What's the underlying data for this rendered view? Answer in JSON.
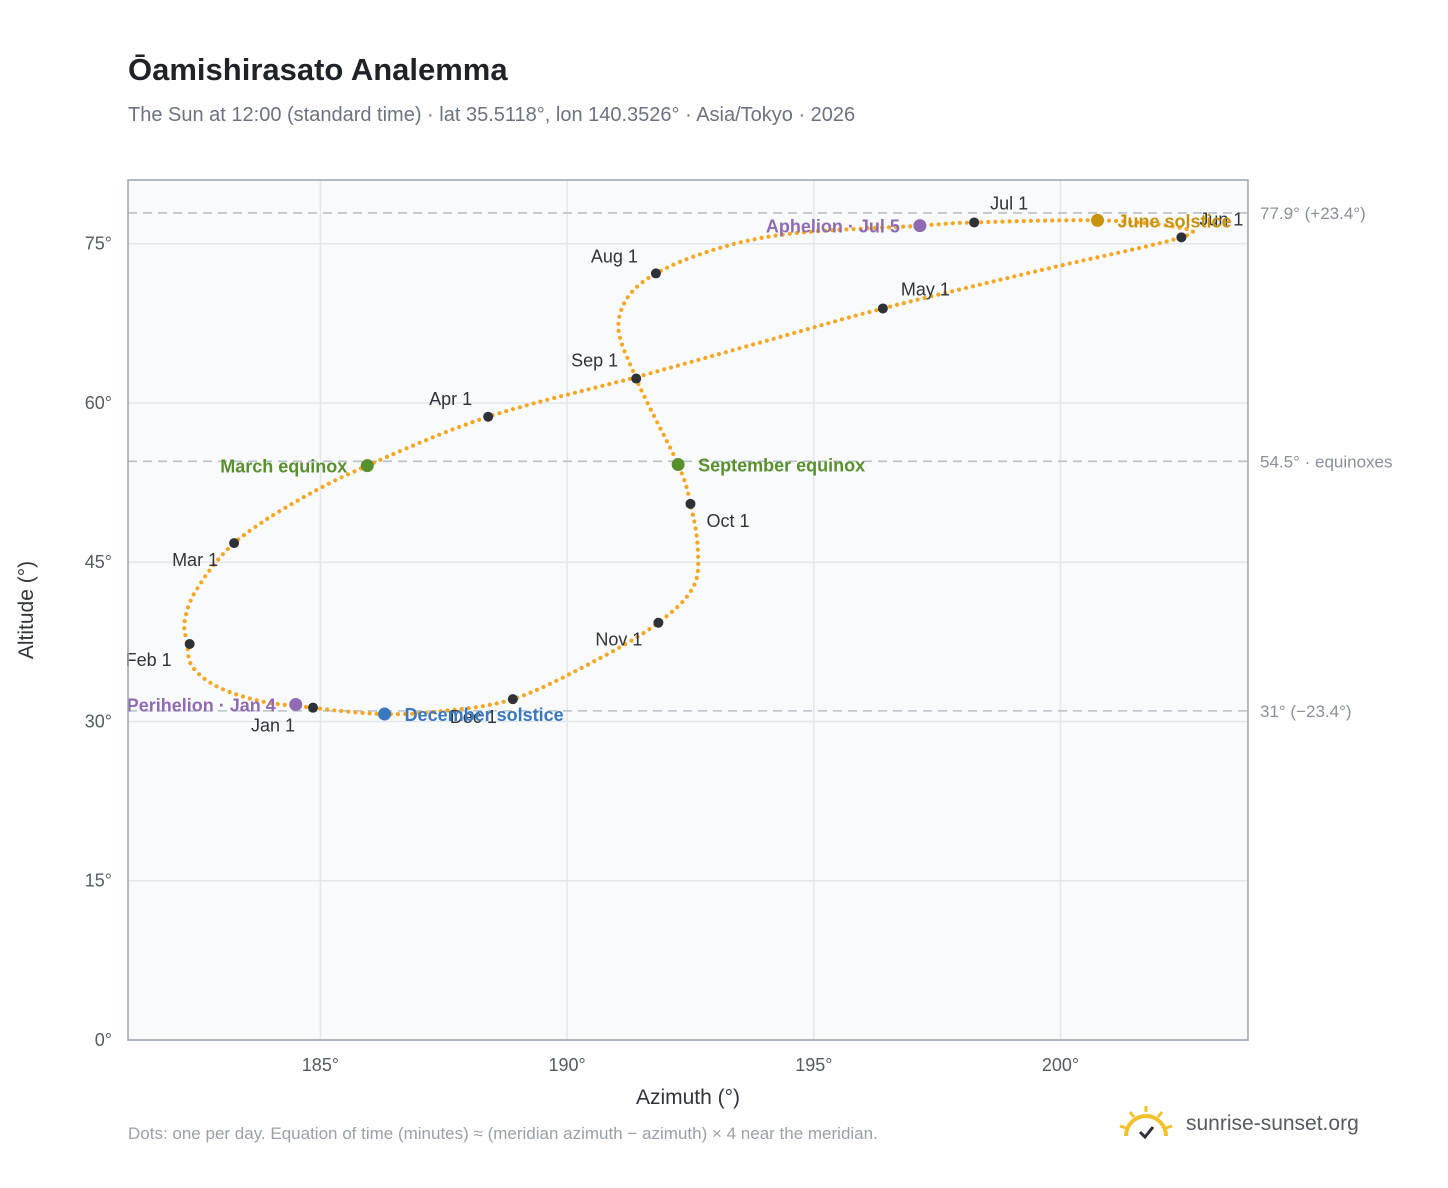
{
  "title": "Ōamishirasato Analemma",
  "subtitle": "The Sun at 12:00 (standard time) · lat 35.5118°, lon 140.3526° · Asia/Tokyo · 2026",
  "footnote": "Dots: one per day. Equation of time (minutes) ≈ (meridian azimuth − azimuth) × 4 near the meridian.",
  "brand": {
    "name": "sunrise-sunset.org",
    "logo_icon": "sun-check-icon",
    "logo_color": "#f2c12e"
  },
  "colors": {
    "path": "#f5a623",
    "month_point": "#2d3138",
    "equinox": "#5a8f2e",
    "june_solstice": "#c9920e",
    "december_solstice": "#3a78bf",
    "apsis": "#8e6bb3",
    "grid": "#e3e7ec",
    "ref_line": "#b9c0ca",
    "plot_bg": "#f8fafc",
    "frame": "#9aa3ae"
  },
  "chart_data": {
    "type": "scatter",
    "title": "Ōamishirasato Analemma",
    "xlabel": "Azimuth (°)",
    "ylabel": "Altitude (°)",
    "xlim": [
      181.1,
      203.8
    ],
    "ylim": [
      0,
      81
    ],
    "x_ticks": [
      {
        "value": 185,
        "label": "185°"
      },
      {
        "value": 190,
        "label": "190°"
      },
      {
        "value": 195,
        "label": "195°"
      },
      {
        "value": 200,
        "label": "200°"
      }
    ],
    "y_ticks": [
      {
        "value": 0,
        "label": "0°"
      },
      {
        "value": 15,
        "label": "15°"
      },
      {
        "value": 30,
        "label": "30°"
      },
      {
        "value": 45,
        "label": "45°"
      },
      {
        "value": 60,
        "label": "60°"
      },
      {
        "value": 75,
        "label": "75°"
      }
    ],
    "grid": true,
    "reference_lines": [
      {
        "y": 77.9,
        "label": "77.9° (+23.4°)"
      },
      {
        "y": 54.5,
        "label": "54.5° · equinoxes"
      },
      {
        "y": 31.0,
        "label": "31° (−23.4°)"
      }
    ],
    "path_keypoints": [
      {
        "x": 184.85,
        "y": 31.3
      },
      {
        "x": 183.8,
        "y": 31.9
      },
      {
        "x": 182.9,
        "y": 33.3
      },
      {
        "x": 182.4,
        "y": 35.2
      },
      {
        "x": 182.3,
        "y": 37.3
      },
      {
        "x": 182.25,
        "y": 39.5
      },
      {
        "x": 182.5,
        "y": 42.5
      },
      {
        "x": 183.25,
        "y": 46.8
      },
      {
        "x": 184.5,
        "y": 50.7
      },
      {
        "x": 185.95,
        "y": 54.1
      },
      {
        "x": 188.4,
        "y": 58.7
      },
      {
        "x": 191.45,
        "y": 62.5
      },
      {
        "x": 194.0,
        "y": 65.8
      },
      {
        "x": 196.4,
        "y": 68.9
      },
      {
        "x": 199.5,
        "y": 72.4
      },
      {
        "x": 202.45,
        "y": 75.6
      },
      {
        "x": 202.3,
        "y": 76.6
      },
      {
        "x": 200.75,
        "y": 77.2
      },
      {
        "x": 198.25,
        "y": 77.0
      },
      {
        "x": 197.15,
        "y": 76.7
      },
      {
        "x": 194.0,
        "y": 75.6
      },
      {
        "x": 191.8,
        "y": 72.2
      },
      {
        "x": 191.05,
        "y": 67.9
      },
      {
        "x": 191.4,
        "y": 62.3
      },
      {
        "x": 192.25,
        "y": 54.2
      },
      {
        "x": 192.5,
        "y": 50.5
      },
      {
        "x": 192.65,
        "y": 46.2
      },
      {
        "x": 192.55,
        "y": 42.6
      },
      {
        "x": 191.85,
        "y": 39.3
      },
      {
        "x": 190.6,
        "y": 35.8
      },
      {
        "x": 188.9,
        "y": 32.1
      },
      {
        "x": 187.3,
        "y": 30.9
      },
      {
        "x": 186.3,
        "y": 30.7
      },
      {
        "x": 185.4,
        "y": 31.0
      },
      {
        "x": 184.85,
        "y": 31.3
      }
    ],
    "month_markers": [
      {
        "label": "Jan 1",
        "x": 184.85,
        "y": 31.3,
        "anchor": "end",
        "dx": -18,
        "dy": 24
      },
      {
        "label": "Feb 1",
        "x": 182.35,
        "y": 37.3,
        "anchor": "end",
        "dx": -18,
        "dy": 22
      },
      {
        "label": "Mar 1",
        "x": 183.25,
        "y": 46.8,
        "anchor": "end",
        "dx": -16,
        "dy": 23
      },
      {
        "label": "Apr 1",
        "x": 188.4,
        "y": 58.7,
        "anchor": "end",
        "dx": -16,
        "dy": -12
      },
      {
        "label": "May 1",
        "x": 196.4,
        "y": 68.9,
        "anchor": "start",
        "dx": 18,
        "dy": -13
      },
      {
        "label": "Jun 1",
        "x": 202.45,
        "y": 75.6,
        "anchor": "start",
        "dx": 18,
        "dy": -12
      },
      {
        "label": "Jul 1",
        "x": 198.25,
        "y": 77.0,
        "anchor": "start",
        "dx": 16,
        "dy": -13
      },
      {
        "label": "Aug 1",
        "x": 191.8,
        "y": 72.2,
        "anchor": "end",
        "dx": -18,
        "dy": -11
      },
      {
        "label": "Sep 1",
        "x": 191.4,
        "y": 62.3,
        "anchor": "end",
        "dx": -18,
        "dy": -12
      },
      {
        "label": "Oct 1",
        "x": 192.5,
        "y": 50.5,
        "anchor": "start",
        "dx": 16,
        "dy": 23
      },
      {
        "label": "Nov 1",
        "x": 191.85,
        "y": 39.3,
        "anchor": "end",
        "dx": -16,
        "dy": 23
      },
      {
        "label": "Dec 1",
        "x": 188.9,
        "y": 32.1,
        "anchor": "end",
        "dx": -16,
        "dy": 24
      }
    ],
    "events": [
      {
        "label": "March equinox",
        "x": 185.95,
        "y": 54.1,
        "color": "#5a8f2e",
        "anchor": "end",
        "dx": -20,
        "dy": 7
      },
      {
        "label": "September equinox",
        "x": 192.25,
        "y": 54.2,
        "color": "#5a8f2e",
        "anchor": "start",
        "dx": 20,
        "dy": 7
      },
      {
        "label": "June solstice",
        "x": 200.75,
        "y": 77.2,
        "color": "#c9920e",
        "anchor": "start",
        "dx": 20,
        "dy": 7
      },
      {
        "label": "December solstice",
        "x": 186.3,
        "y": 30.7,
        "color": "#3a78bf",
        "anchor": "start",
        "dx": 20,
        "dy": 7
      },
      {
        "label": "Aphelion · Jul 5",
        "x": 197.15,
        "y": 76.7,
        "color": "#8e6bb3",
        "anchor": "end",
        "dx": -20,
        "dy": 7
      },
      {
        "label": "Perihelion · Jan 4",
        "x": 184.5,
        "y": 31.6,
        "color": "#8e6bb3",
        "anchor": "end",
        "dx": -20,
        "dy": 7
      }
    ]
  }
}
